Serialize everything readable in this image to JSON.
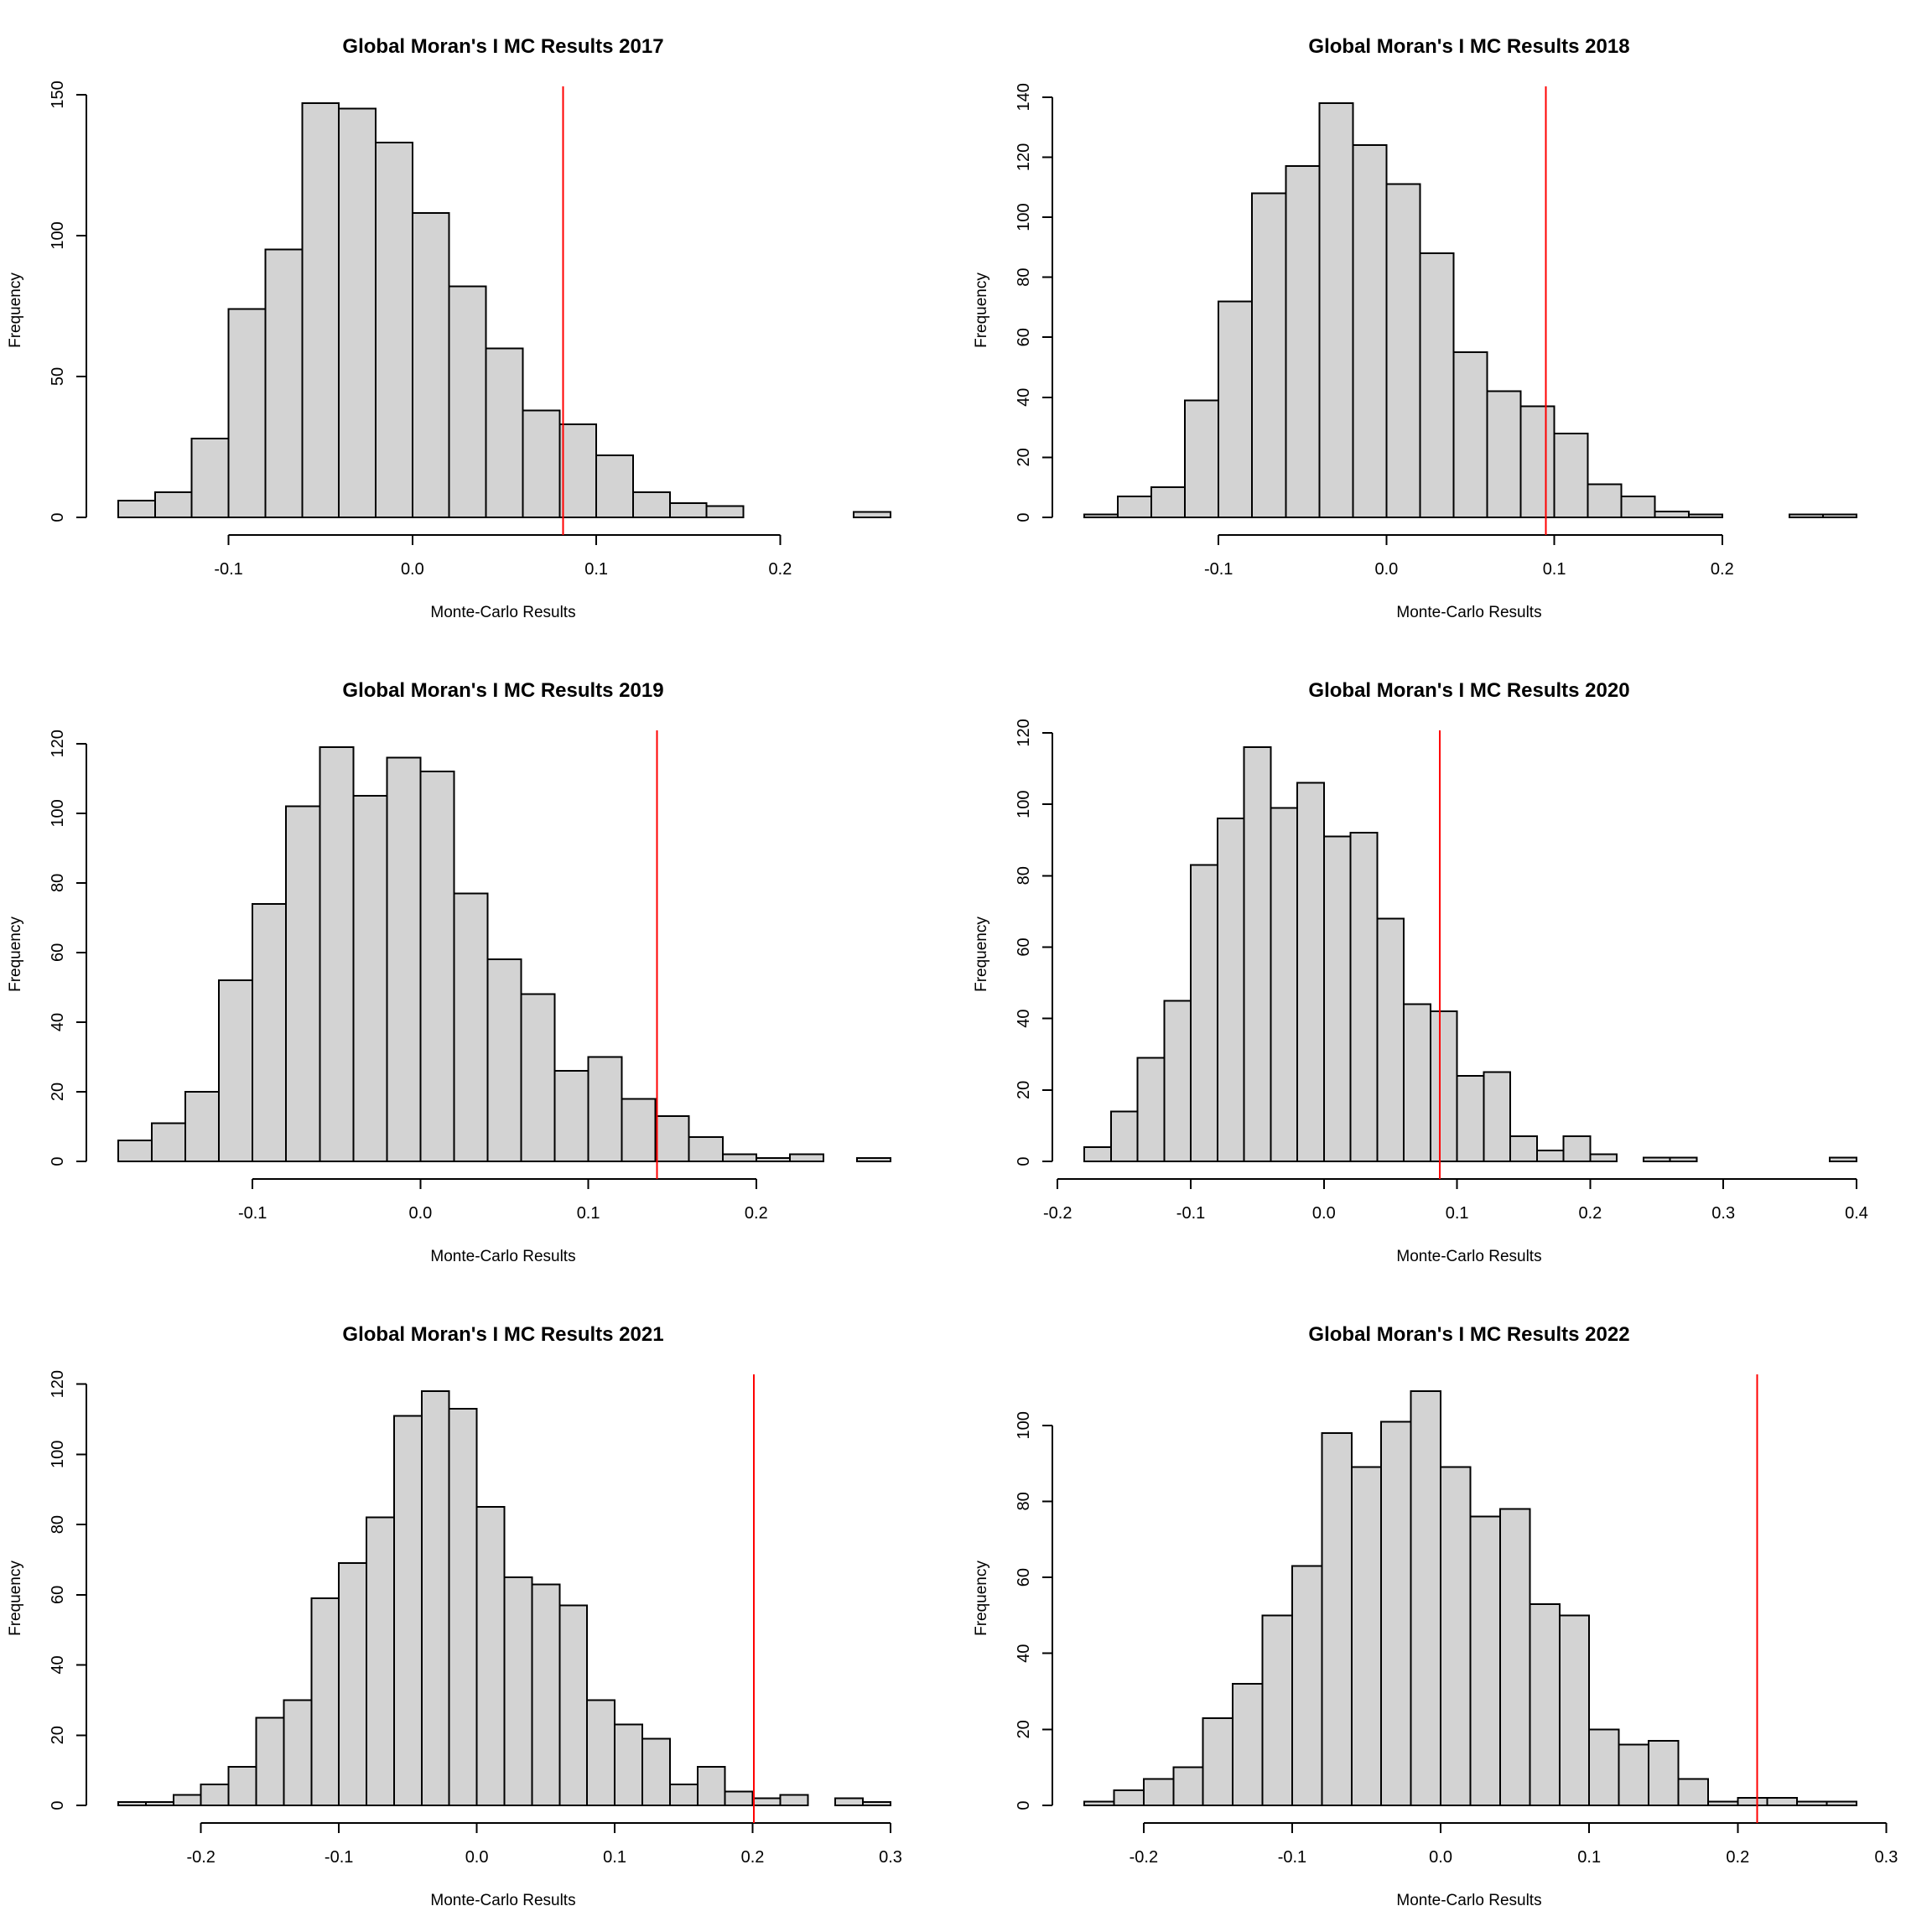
{
  "chart_data": [
    {
      "type": "bar",
      "title": "Global Moran's I MC Results 2017",
      "xlabel": "Monte-Carlo Results",
      "ylabel": "Frequency",
      "bin_start": -0.16,
      "bin_width": 0.02,
      "counts": [
        6,
        9,
        28,
        74,
        95,
        147,
        145,
        133,
        108,
        82,
        60,
        38,
        33,
        22,
        9,
        5,
        4,
        0,
        0,
        0,
        2
      ],
      "observed_value": 0.082,
      "xticks": [
        "-0.1",
        "0.0",
        "0.1",
        "0.2"
      ],
      "xtick_values": [
        -0.1,
        0.0,
        0.1,
        0.2
      ],
      "yticks": [
        "0",
        "50",
        "100",
        "150"
      ],
      "ytick_values": [
        0,
        50,
        100,
        150
      ],
      "xlim": [
        -0.16,
        0.26
      ],
      "ylim": [
        0,
        147
      ],
      "grid": false
    },
    {
      "type": "bar",
      "title": "Global Moran's I MC Results 2018",
      "xlabel": "Monte-Carlo Results",
      "ylabel": "Frequency",
      "bin_start": -0.18,
      "bin_width": 0.02,
      "counts": [
        1,
        7,
        10,
        39,
        72,
        108,
        117,
        138,
        124,
        111,
        88,
        55,
        42,
        37,
        28,
        11,
        7,
        2,
        1,
        0,
        0,
        1,
        1
      ],
      "observed_value": 0.095,
      "xticks": [
        "-0.1",
        "0.0",
        "0.1",
        "0.2"
      ],
      "xtick_values": [
        -0.1,
        0.0,
        0.1,
        0.2
      ],
      "yticks": [
        "0",
        "20",
        "40",
        "60",
        "80",
        "100",
        "120",
        "140"
      ],
      "ytick_values": [
        0,
        20,
        40,
        60,
        80,
        100,
        120,
        140
      ],
      "xlim": [
        -0.18,
        0.28
      ],
      "ylim": [
        0,
        138
      ],
      "grid": false
    },
    {
      "type": "bar",
      "title": "Global Moran's I MC Results 2019",
      "xlabel": "Monte-Carlo Results",
      "ylabel": "Frequency",
      "bin_start": -0.18,
      "bin_width": 0.02,
      "counts": [
        6,
        11,
        20,
        52,
        74,
        102,
        119,
        105,
        116,
        112,
        77,
        58,
        48,
        26,
        30,
        18,
        13,
        7,
        2,
        1,
        2,
        0,
        1
      ],
      "observed_value": 0.141,
      "xticks": [
        "-0.1",
        "0.0",
        "0.1",
        "0.2"
      ],
      "xtick_values": [
        -0.1,
        0.0,
        0.1,
        0.2
      ],
      "yticks": [
        "0",
        "20",
        "40",
        "60",
        "80",
        "100",
        "120"
      ],
      "ytick_values": [
        0,
        20,
        40,
        60,
        80,
        100,
        120
      ],
      "xlim": [
        -0.18,
        0.28
      ],
      "ylim": [
        0,
        119
      ],
      "grid": false
    },
    {
      "type": "bar",
      "title": "Global Moran's I MC Results 2020",
      "xlabel": "Monte-Carlo Results",
      "ylabel": "Frequency",
      "bin_start": -0.18,
      "bin_width": 0.02,
      "counts": [
        4,
        14,
        29,
        45,
        83,
        96,
        116,
        99,
        106,
        91,
        92,
        68,
        44,
        42,
        24,
        25,
        7,
        3,
        7,
        2,
        0,
        1,
        1,
        0,
        0,
        0,
        0,
        0,
        1
      ],
      "observed_value": 0.087,
      "xticks": [
        "-0.2",
        "-0.1",
        "0.0",
        "0.1",
        "0.2",
        "0.3",
        "0.4"
      ],
      "xtick_values": [
        -0.2,
        -0.1,
        0.0,
        0.1,
        0.2,
        0.3,
        0.4
      ],
      "yticks": [
        "0",
        "20",
        "40",
        "60",
        "80",
        "100",
        "120"
      ],
      "ytick_values": [
        0,
        20,
        40,
        60,
        80,
        100,
        120
      ],
      "xlim": [
        -0.18,
        0.4
      ],
      "ylim": [
        0,
        116
      ],
      "grid": false
    },
    {
      "type": "bar",
      "title": "Global Moran's I MC Results 2021",
      "xlabel": "Monte-Carlo Results",
      "ylabel": "Frequency",
      "bin_start": -0.26,
      "bin_width": 0.02,
      "counts": [
        1,
        1,
        3,
        6,
        11,
        25,
        30,
        59,
        69,
        82,
        111,
        118,
        113,
        85,
        65,
        63,
        57,
        30,
        23,
        19,
        6,
        11,
        4,
        2,
        3,
        0,
        2,
        1
      ],
      "observed_value": 0.201,
      "xticks": [
        "-0.2",
        "-0.1",
        "0.0",
        "0.1",
        "0.2",
        "0.3"
      ],
      "xtick_values": [
        -0.2,
        -0.1,
        0.0,
        0.1,
        0.2,
        0.3
      ],
      "yticks": [
        "0",
        "20",
        "40",
        "60",
        "80",
        "100",
        "120"
      ],
      "ytick_values": [
        0,
        20,
        40,
        60,
        80,
        100,
        120
      ],
      "xlim": [
        -0.26,
        0.3
      ],
      "ylim": [
        0,
        118
      ],
      "grid": false
    },
    {
      "type": "bar",
      "title": "Global Moran's I MC Results 2022",
      "xlabel": "Monte-Carlo Results",
      "ylabel": "Frequency",
      "bin_start": -0.24,
      "bin_width": 0.02,
      "counts": [
        1,
        4,
        7,
        10,
        23,
        32,
        50,
        63,
        98,
        89,
        101,
        109,
        89,
        76,
        78,
        53,
        50,
        20,
        16,
        17,
        7,
        1,
        2,
        2,
        1,
        1
      ],
      "observed_value": 0.213,
      "xticks": [
        "-0.2",
        "-0.1",
        "0.0",
        "0.1",
        "0.2",
        "0.3"
      ],
      "xtick_values": [
        -0.2,
        -0.1,
        0.0,
        0.1,
        0.2,
        0.3
      ],
      "yticks": [
        "0",
        "20",
        "40",
        "60",
        "80",
        "100"
      ],
      "ytick_values": [
        0,
        20,
        40,
        60,
        80,
        100
      ],
      "xlim": [
        -0.24,
        0.28
      ],
      "ylim": [
        0,
        109
      ],
      "grid": false
    }
  ],
  "style": {
    "bar_fill": "#d3d3d3",
    "bar_stroke": "#000000",
    "observed_line_color": "#ff0000"
  }
}
